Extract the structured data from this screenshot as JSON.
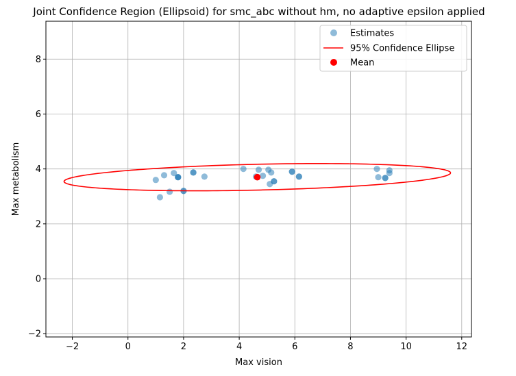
{
  "chart_data": {
    "type": "scatter",
    "title": "Joint Confidence Region (Ellipsoid) for smc_abc without hm, no adaptive epsilon applied",
    "xlabel": "Max vision",
    "ylabel": "Max metabolism",
    "xlim": [
      -2.95,
      12.35
    ],
    "ylim": [
      -2.12,
      9.38
    ],
    "xticks": [
      -2,
      0,
      2,
      4,
      6,
      8,
      10,
      12
    ],
    "yticks": [
      -2,
      0,
      2,
      4,
      6,
      8
    ],
    "grid": true,
    "legend_position": "top-right",
    "legend": [
      "Estimates",
      "95% Confidence Ellipse",
      "Mean"
    ],
    "series": [
      {
        "name": "Estimates",
        "color": "#1f77b4",
        "marker": "circle",
        "points": [
          [
            1.0,
            3.6
          ],
          [
            1.15,
            2.97
          ],
          [
            1.3,
            3.77
          ],
          [
            1.5,
            3.17
          ],
          [
            1.65,
            3.85
          ],
          [
            1.8,
            3.7
          ],
          [
            1.8,
            3.7
          ],
          [
            1.8,
            3.7
          ],
          [
            2.0,
            3.2
          ],
          [
            2.0,
            3.2
          ],
          [
            2.35,
            3.87
          ],
          [
            2.35,
            3.87
          ],
          [
            2.75,
            3.72
          ],
          [
            4.15,
            4.0
          ],
          [
            4.6,
            3.72
          ],
          [
            4.7,
            3.97
          ],
          [
            4.85,
            3.75
          ],
          [
            5.05,
            3.97
          ],
          [
            5.1,
            3.45
          ],
          [
            5.15,
            3.87
          ],
          [
            5.25,
            3.55
          ],
          [
            5.25,
            3.55
          ],
          [
            5.9,
            3.9
          ],
          [
            5.9,
            3.9
          ],
          [
            6.15,
            3.72
          ],
          [
            6.15,
            3.72
          ],
          [
            8.95,
            4.0
          ],
          [
            9.0,
            3.7
          ],
          [
            9.25,
            3.67
          ],
          [
            9.25,
            3.67
          ],
          [
            9.4,
            3.95
          ],
          [
            9.4,
            3.85
          ]
        ]
      },
      {
        "name": "95% Confidence Ellipse",
        "color": "#ff0000",
        "type": "line",
        "ellipse": {
          "center": [
            4.65,
            3.7
          ],
          "semi_axis_major": 6.95,
          "semi_axis_minor": 0.47,
          "angle_deg": 1.3
        }
      },
      {
        "name": "Mean",
        "color": "#ff0000",
        "marker": "circle",
        "points": [
          [
            4.65,
            3.7
          ]
        ]
      }
    ]
  }
}
